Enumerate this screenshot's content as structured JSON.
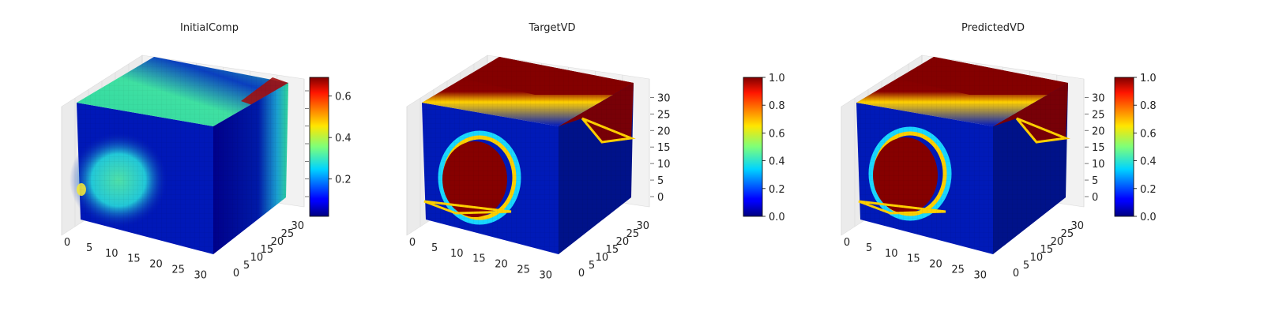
{
  "chart_data": [
    {
      "type": "heatmap",
      "title": "InitialComp",
      "x_ticks": [
        0,
        5,
        10,
        15,
        20,
        25,
        30
      ],
      "y_ticks": [
        0,
        5,
        10,
        15,
        20,
        25,
        30
      ],
      "z_ticks": [],
      "colorbar": {
        "min": 0.02,
        "max": 0.69,
        "ticks": [
          0.2,
          0.4,
          0.6
        ],
        "colormap": "jet"
      }
    },
    {
      "type": "heatmap",
      "title": "TargetVD",
      "x_ticks": [
        0,
        5,
        10,
        15,
        20,
        25,
        30
      ],
      "y_ticks": [
        0,
        5,
        10,
        15,
        20,
        25,
        30
      ],
      "z_ticks": [
        0,
        5,
        10,
        15,
        20,
        25,
        30
      ],
      "colorbar": {
        "min": 0.0,
        "max": 1.0,
        "ticks": [
          0.0,
          0.2,
          0.4,
          0.6,
          0.8,
          1.0
        ],
        "colormap": "jet"
      }
    },
    {
      "type": "heatmap",
      "title": "PredictedVD",
      "x_ticks": [
        0,
        5,
        10,
        15,
        20,
        25,
        30
      ],
      "y_ticks": [
        0,
        5,
        10,
        15,
        20,
        25,
        30
      ],
      "z_ticks": [
        0,
        5,
        10,
        15,
        20,
        25,
        30
      ],
      "colorbar": {
        "min": 0.0,
        "max": 1.0,
        "ticks": [
          0.0,
          0.2,
          0.4,
          0.6,
          0.8,
          1.0
        ],
        "colormap": "jet"
      }
    }
  ]
}
